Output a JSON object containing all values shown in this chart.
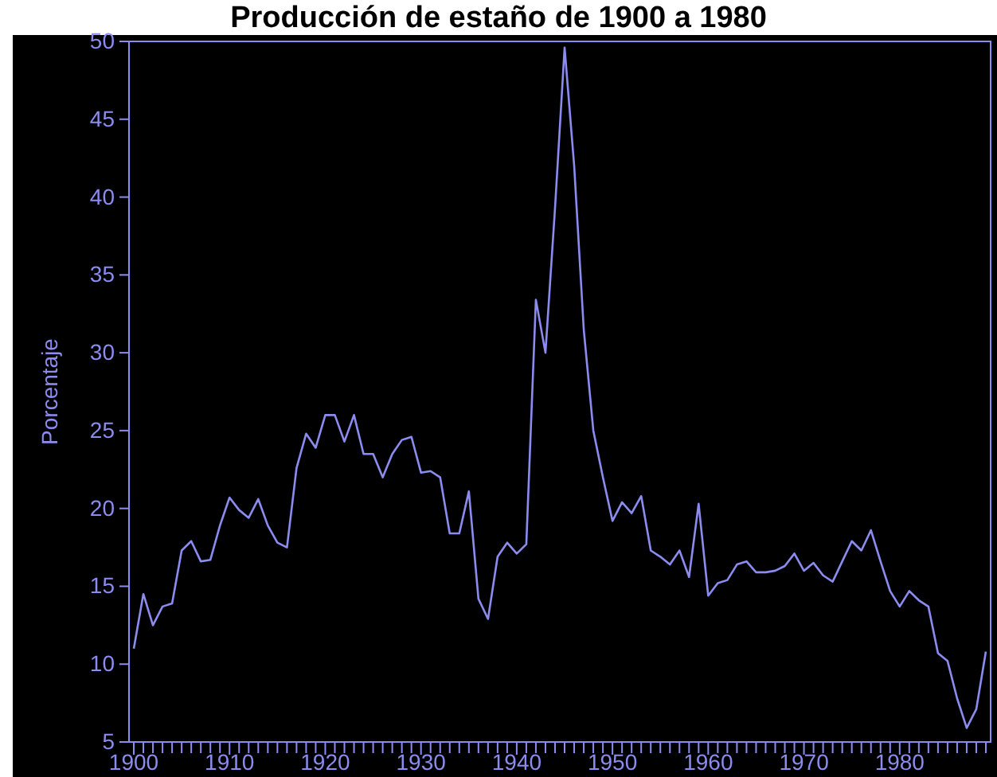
{
  "chart_data": {
    "type": "line",
    "title": "Producción de estaño de 1900 a 1980",
    "ylabel": "Porcentaje",
    "x": [
      1900,
      1901,
      1902,
      1903,
      1904,
      1905,
      1906,
      1907,
      1908,
      1909,
      1910,
      1911,
      1912,
      1913,
      1914,
      1915,
      1916,
      1917,
      1918,
      1919,
      1920,
      1921,
      1922,
      1923,
      1924,
      1925,
      1926,
      1927,
      1928,
      1929,
      1930,
      1931,
      1932,
      1933,
      1934,
      1935,
      1936,
      1937,
      1938,
      1939,
      1940,
      1941,
      1942,
      1943,
      1944,
      1945,
      1946,
      1947,
      1948,
      1949,
      1950,
      1951,
      1952,
      1953,
      1954,
      1955,
      1956,
      1957,
      1958,
      1959,
      1960,
      1961,
      1962,
      1963,
      1964,
      1965,
      1966,
      1967,
      1968,
      1969,
      1970,
      1971,
      1972,
      1973,
      1974,
      1975,
      1976,
      1977,
      1978,
      1979,
      1980,
      1981,
      1982,
      1983,
      1984,
      1985,
      1986,
      1987,
      1988,
      1989
    ],
    "series": [
      {
        "color": "#8c8cf0",
        "values": [
          11.0,
          14.5,
          12.5,
          13.7,
          13.9,
          17.3,
          17.9,
          16.6,
          16.7,
          18.9,
          20.7,
          19.9,
          19.4,
          20.6,
          18.9,
          17.8,
          17.5,
          22.6,
          24.8,
          23.9,
          26.0,
          26.0,
          24.3,
          26.0,
          23.5,
          23.5,
          22.0,
          23.5,
          24.4,
          24.6,
          22.3,
          22.4,
          22.0,
          18.4,
          18.4,
          21.1,
          14.2,
          12.9,
          16.9,
          17.8,
          17.1,
          17.7,
          33.4,
          30.0,
          39.3,
          49.6,
          42.0,
          31.5,
          25.0,
          22.0,
          19.2,
          20.4,
          19.7,
          20.8,
          17.3,
          16.9,
          16.4,
          17.3,
          15.6,
          20.3,
          14.4,
          15.2,
          15.4,
          16.4,
          16.6,
          15.9,
          15.9,
          16.0,
          16.3,
          17.1,
          16.0,
          16.5,
          15.7,
          15.3,
          16.6,
          17.9,
          17.3,
          18.6,
          16.6,
          14.7,
          13.7,
          14.7,
          14.1,
          13.7,
          10.7,
          10.2,
          7.8,
          5.9,
          7.1,
          10.8
        ]
      }
    ],
    "xlim": [
      1899.5,
      1989.5
    ],
    "xticks": [
      1900,
      {
        "value": 1901,
        "label": null
      },
      {
        "value": 1902,
        "label": null
      },
      {
        "value": 1903,
        "label": null
      },
      {
        "value": 1904,
        "label": null
      },
      {
        "value": 1905,
        "label": null
      },
      {
        "value": 1906,
        "label": null
      },
      {
        "value": 1907,
        "label": null
      },
      {
        "value": 1908,
        "label": null
      },
      {
        "value": 1909,
        "label": null
      },
      1910,
      {
        "value": 1911,
        "label": null
      },
      {
        "value": 1912,
        "label": null
      },
      {
        "value": 1913,
        "label": null
      },
      {
        "value": 1914,
        "label": null
      },
      {
        "value": 1915,
        "label": null
      },
      {
        "value": 1916,
        "label": null
      },
      {
        "value": 1917,
        "label": null
      },
      {
        "value": 1918,
        "label": null
      },
      {
        "value": 1919,
        "label": null
      },
      1920,
      {
        "value": 1921,
        "label": null
      },
      {
        "value": 1922,
        "label": null
      },
      {
        "value": 1923,
        "label": null
      },
      {
        "value": 1924,
        "label": null
      },
      {
        "value": 1925,
        "label": null
      },
      {
        "value": 1926,
        "label": null
      },
      {
        "value": 1927,
        "label": null
      },
      {
        "value": 1928,
        "label": null
      },
      {
        "value": 1929,
        "label": null
      },
      1930,
      {
        "value": 1931,
        "label": null
      },
      {
        "value": 1932,
        "label": null
      },
      {
        "value": 1933,
        "label": null
      },
      {
        "value": 1934,
        "label": null
      },
      {
        "value": 1935,
        "label": null
      },
      {
        "value": 1936,
        "label": null
      },
      {
        "value": 1937,
        "label": null
      },
      {
        "value": 1938,
        "label": null
      },
      {
        "value": 1939,
        "label": null
      },
      1940,
      {
        "value": 1941,
        "label": null
      },
      {
        "value": 1942,
        "label": null
      },
      {
        "value": 1943,
        "label": null
      },
      {
        "value": 1944,
        "label": null
      },
      {
        "value": 1945,
        "label": null
      },
      {
        "value": 1946,
        "label": null
      },
      {
        "value": 1947,
        "label": null
      },
      {
        "value": 1948,
        "label": null
      },
      {
        "value": 1949,
        "label": null
      },
      1950,
      {
        "value": 1951,
        "label": null
      },
      {
        "value": 1952,
        "label": null
      },
      {
        "value": 1953,
        "label": null
      },
      {
        "value": 1954,
        "label": null
      },
      {
        "value": 1955,
        "label": null
      },
      {
        "value": 1956,
        "label": null
      },
      {
        "value": 1957,
        "label": null
      },
      {
        "value": 1958,
        "label": null
      },
      {
        "value": 1959,
        "label": null
      },
      1960,
      {
        "value": 1961,
        "label": null
      },
      {
        "value": 1962,
        "label": null
      },
      {
        "value": 1963,
        "label": null
      },
      {
        "value": 1964,
        "label": null
      },
      {
        "value": 1965,
        "label": null
      },
      {
        "value": 1966,
        "label": null
      },
      {
        "value": 1967,
        "label": null
      },
      {
        "value": 1968,
        "label": null
      },
      {
        "value": 1969,
        "label": null
      },
      1970,
      {
        "value": 1971,
        "label": null
      },
      {
        "value": 1972,
        "label": null
      },
      {
        "value": 1973,
        "label": null
      },
      {
        "value": 1974,
        "label": null
      },
      {
        "value": 1975,
        "label": null
      },
      {
        "value": 1976,
        "label": null
      },
      {
        "value": 1977,
        "label": null
      },
      {
        "value": 1978,
        "label": null
      },
      {
        "value": 1979,
        "label": null
      },
      1980,
      {
        "value": 1981,
        "label": null
      },
      {
        "value": 1982,
        "label": null
      },
      {
        "value": 1983,
        "label": null
      },
      {
        "value": 1984,
        "label": null
      },
      {
        "value": 1985,
        "label": null
      },
      {
        "value": 1986,
        "label": null
      },
      {
        "value": 1987,
        "label": null
      },
      {
        "value": 1988,
        "label": null
      },
      {
        "value": 1989,
        "label": null
      }
    ],
    "ylim": [
      5,
      50
    ],
    "yticks": [
      5,
      10,
      15,
      20,
      25,
      30,
      35,
      40,
      45,
      50
    ],
    "grid": false,
    "marker": "none",
    "line_style": "solid"
  }
}
